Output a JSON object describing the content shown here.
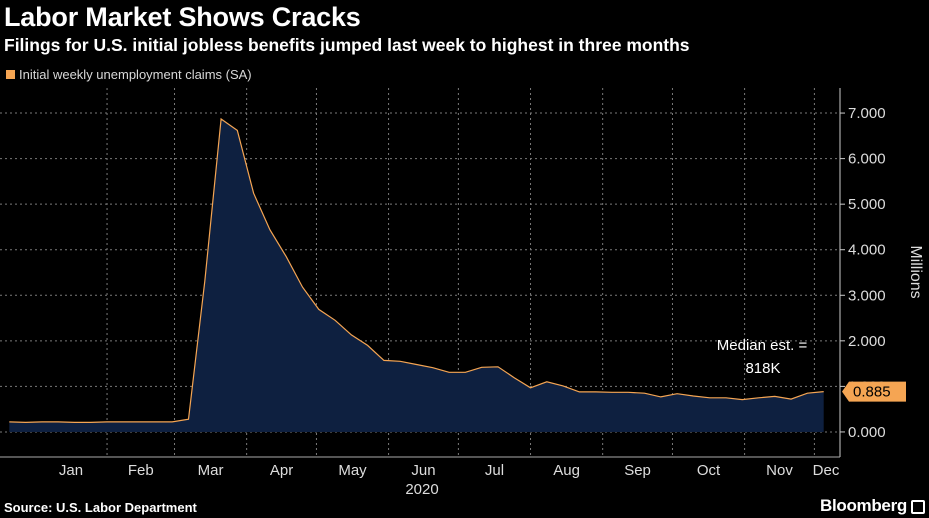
{
  "chart_data": {
    "type": "area",
    "title": "Labor Market Shows Cracks",
    "subtitle": "Filings for U.S. initial jobless benefits jumped last week to highest in three months",
    "legend": [
      "Initial weekly unemployment claims (SA)"
    ],
    "ylabel": "Millions",
    "xlabel": "2020",
    "ylim": [
      -0.55,
      7.55
    ],
    "y_ticks": [
      "0.000",
      "1.000",
      "2.000",
      "3.000",
      "4.000",
      "5.000",
      "6.000",
      "7.000"
    ],
    "y_tick_values": [
      0,
      1,
      2,
      3,
      4,
      5,
      6,
      7
    ],
    "x_tick_labels": [
      "Jan",
      "Feb",
      "Mar",
      "Apr",
      "May",
      "Jun",
      "Jul",
      "Aug",
      "Sep",
      "Oct",
      "Nov",
      "Dec"
    ],
    "x_tick_dates": [
      "2020-01-01",
      "2020-02-01",
      "2020-03-01",
      "2020-04-01",
      "2020-05-01",
      "2020-06-01",
      "2020-07-01",
      "2020-08-01",
      "2020-09-01",
      "2020-10-01",
      "2020-11-01",
      "2020-12-01"
    ],
    "xlim": [
      "2019-12-17",
      "2020-12-12"
    ],
    "grid": true,
    "series": [
      {
        "name": "Initial weekly unemployment claims (SA)",
        "color": "#f5a553",
        "fill": "#0e2040",
        "x": [
          "2019-12-21",
          "2019-12-28",
          "2020-01-04",
          "2020-01-11",
          "2020-01-18",
          "2020-01-25",
          "2020-02-01",
          "2020-02-08",
          "2020-02-15",
          "2020-02-22",
          "2020-02-29",
          "2020-03-07",
          "2020-03-14",
          "2020-03-21",
          "2020-03-28",
          "2020-04-04",
          "2020-04-11",
          "2020-04-18",
          "2020-04-25",
          "2020-05-02",
          "2020-05-09",
          "2020-05-16",
          "2020-05-23",
          "2020-05-30",
          "2020-06-06",
          "2020-06-13",
          "2020-06-20",
          "2020-06-27",
          "2020-07-04",
          "2020-07-11",
          "2020-07-18",
          "2020-07-25",
          "2020-08-01",
          "2020-08-08",
          "2020-08-15",
          "2020-08-22",
          "2020-08-29",
          "2020-09-05",
          "2020-09-12",
          "2020-09-19",
          "2020-09-26",
          "2020-10-03",
          "2020-10-10",
          "2020-10-17",
          "2020-10-24",
          "2020-10-31",
          "2020-11-07",
          "2020-11-14",
          "2020-11-21",
          "2020-11-28",
          "2020-12-05"
        ],
        "values": [
          0.22,
          0.21,
          0.22,
          0.22,
          0.21,
          0.21,
          0.22,
          0.22,
          0.22,
          0.22,
          0.22,
          0.28,
          3.31,
          6.87,
          6.62,
          5.24,
          4.44,
          3.85,
          3.18,
          2.69,
          2.45,
          2.13,
          1.9,
          1.57,
          1.55,
          1.48,
          1.41,
          1.31,
          1.31,
          1.42,
          1.43,
          1.19,
          0.97,
          1.1,
          1.01,
          0.88,
          0.88,
          0.87,
          0.87,
          0.85,
          0.77,
          0.84,
          0.79,
          0.75,
          0.75,
          0.71,
          0.75,
          0.78,
          0.72,
          0.85,
          0.885
        ]
      }
    ],
    "last_value_label": "0.885",
    "annotation": "Median est. = 818K",
    "annotation_lines": [
      "Median est. =",
      "818K"
    ],
    "source": "Source: U.S. Labor Department",
    "brand": "Bloomberg"
  }
}
